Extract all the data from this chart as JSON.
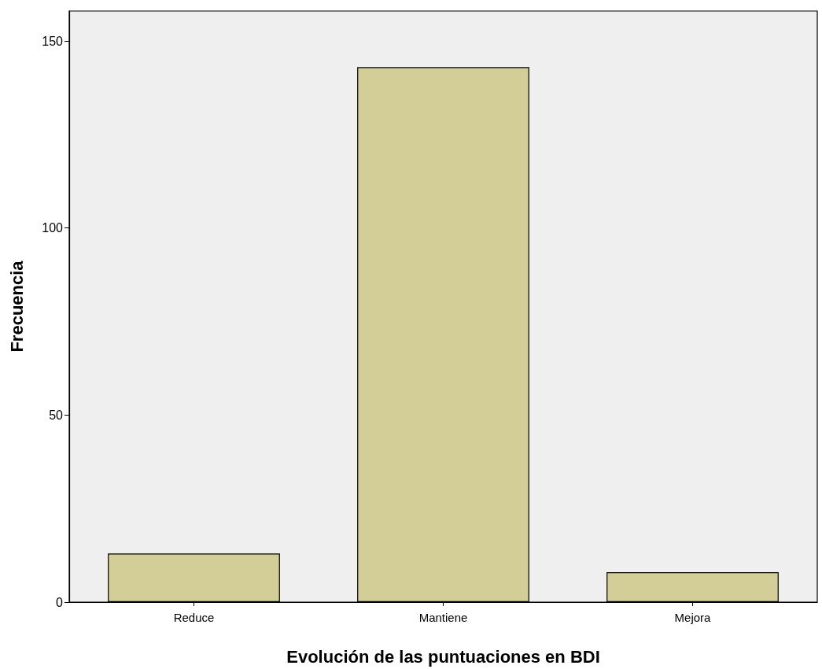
{
  "chart_data": {
    "type": "bar",
    "xlabel": "Evolución de las puntuaciones en BDI",
    "ylabel": "Frecuencia",
    "categories": [
      "Reduce",
      "Mantiene",
      "Mejora"
    ],
    "values": [
      13,
      143,
      8
    ],
    "color": "#d3ce97",
    "ylim": [
      0,
      158
    ],
    "yticks": [
      0,
      50,
      100,
      150
    ],
    "grid": false
  }
}
